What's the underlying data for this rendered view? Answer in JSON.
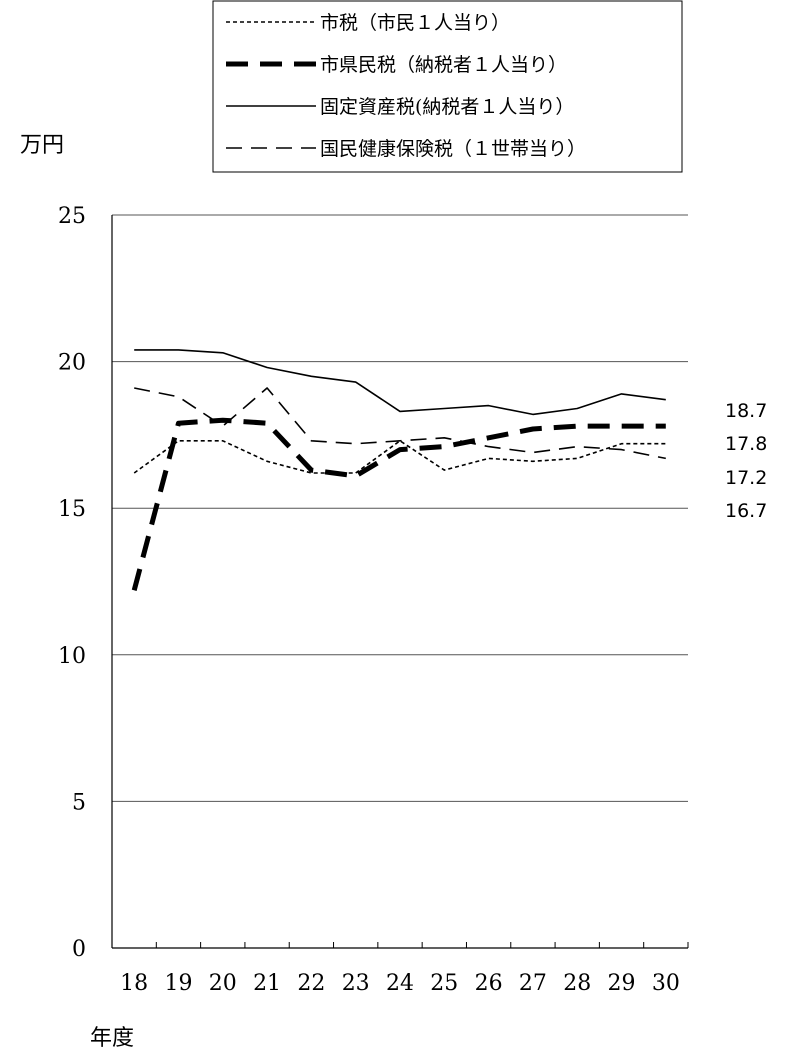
{
  "chart_data": {
    "type": "line",
    "ylabel": "万円",
    "xlabel": "年度",
    "ylim": [
      0,
      25
    ],
    "yticks": [
      0,
      5,
      10,
      15,
      20,
      25
    ],
    "x": [
      "18",
      "19",
      "20",
      "21",
      "22",
      "23",
      "24",
      "25",
      "26",
      "27",
      "28",
      "29",
      "30"
    ],
    "grid": "horizontal",
    "legend_position": "top-right",
    "series": [
      {
        "name": "市税（市民１人当り）",
        "style": "dotted",
        "values": [
          16.2,
          17.3,
          17.3,
          16.6,
          16.2,
          16.2,
          17.3,
          16.3,
          16.7,
          16.6,
          16.7,
          17.2,
          17.2
        ]
      },
      {
        "name": "市県民税（納税者１人当り）",
        "style": "thick-dashed",
        "values": [
          12.2,
          17.9,
          18.0,
          17.9,
          16.3,
          16.1,
          17.0,
          17.1,
          17.4,
          17.7,
          17.8,
          17.8,
          17.8
        ]
      },
      {
        "name": "固定資産税(納税者１人当り）",
        "style": "solid",
        "values": [
          20.4,
          20.4,
          20.3,
          19.8,
          19.5,
          19.3,
          18.3,
          18.4,
          18.5,
          18.2,
          18.4,
          18.9,
          18.7
        ]
      },
      {
        "name": "国民健康保険税（１世帯当り）",
        "style": "dashed",
        "values": [
          19.1,
          18.8,
          17.8,
          19.1,
          17.3,
          17.2,
          17.3,
          17.4,
          17.1,
          16.9,
          17.1,
          17.0,
          16.7
        ]
      }
    ],
    "end_labels": [
      "18.7",
      "17.8",
      "17.2",
      "16.7"
    ]
  }
}
